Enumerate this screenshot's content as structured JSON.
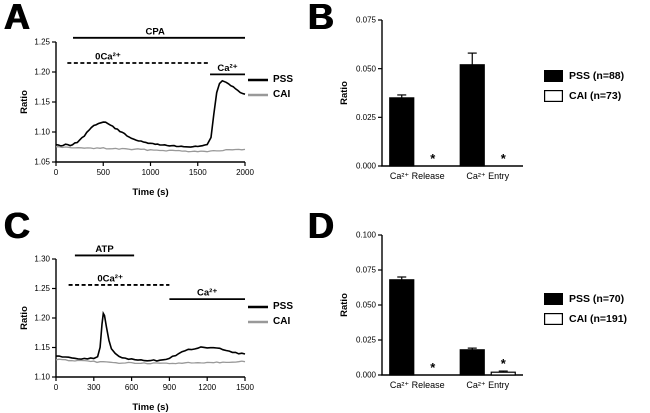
{
  "figure": {
    "background": "#ffffff",
    "trace_black": "#000000",
    "trace_gray": "#999999"
  },
  "panels": {
    "a": {
      "letter": "A",
      "legend": [
        {
          "label": "PSS",
          "color": "#000000"
        },
        {
          "label": "CAI",
          "color": "#999999"
        }
      ]
    },
    "b": {
      "letter": "B",
      "legend": [
        {
          "label": "PSS (n=88)",
          "fill": "#000000"
        },
        {
          "label": "CAI (n=73)",
          "fill": "#ffffff"
        }
      ]
    },
    "c": {
      "letter": "C",
      "legend": [
        {
          "label": "PSS",
          "color": "#000000"
        },
        {
          "label": "CAI",
          "color": "#999999"
        }
      ]
    },
    "d": {
      "letter": "D",
      "legend": [
        {
          "label": "PSS (n=70)",
          "fill": "#000000"
        },
        {
          "label": "CAI (n=191)",
          "fill": "#ffffff"
        }
      ]
    }
  },
  "chart_data": [
    {
      "id": "chart-a",
      "type": "line",
      "title": "",
      "xlabel": "Time (s)",
      "ylabel": "Ratio",
      "xlim": [
        0,
        2000
      ],
      "ylim": [
        1.05,
        1.25
      ],
      "xticks": [
        0,
        500,
        1000,
        1500,
        2000
      ],
      "yticks": [
        1.05,
        1.1,
        1.15,
        1.2,
        1.25
      ],
      "ytick_decimals": 2,
      "margins": {
        "l": 40,
        "r": 6,
        "t": 40,
        "b": 36
      },
      "annotations": [
        {
          "label": "CPA",
          "style": "solid",
          "x0": 180,
          "x1": 2000,
          "y": 1.257,
          "label_x": 1050
        },
        {
          "label": "0Ca²⁺",
          "style": "dashed",
          "x0": 120,
          "x1": 1620,
          "y": 1.215,
          "label_x": 550
        },
        {
          "label": "Ca²⁺",
          "style": "solid",
          "x0": 1630,
          "x1": 2000,
          "y": 1.196,
          "label_x": 1815
        }
      ],
      "series": [
        {
          "name": "PSS",
          "color": "#000000",
          "width": 1.6,
          "x": [
            0,
            50,
            100,
            150,
            200,
            250,
            300,
            350,
            400,
            450,
            500,
            550,
            600,
            650,
            700,
            750,
            800,
            850,
            900,
            950,
            1000,
            1050,
            1100,
            1150,
            1200,
            1250,
            1300,
            1350,
            1400,
            1450,
            1500,
            1550,
            1600,
            1640,
            1670,
            1700,
            1730,
            1760,
            1800,
            1850,
            1900,
            1950,
            2000
          ],
          "y": [
            1.079,
            1.077,
            1.08,
            1.078,
            1.081,
            1.086,
            1.094,
            1.103,
            1.11,
            1.115,
            1.117,
            1.114,
            1.109,
            1.104,
            1.099,
            1.094,
            1.09,
            1.087,
            1.084,
            1.082,
            1.081,
            1.08,
            1.079,
            1.078,
            1.077,
            1.077,
            1.076,
            1.076,
            1.075,
            1.075,
            1.076,
            1.077,
            1.079,
            1.09,
            1.13,
            1.165,
            1.18,
            1.186,
            1.183,
            1.178,
            1.172,
            1.166,
            1.163
          ]
        },
        {
          "name": "CAI",
          "color": "#999999",
          "width": 1.3,
          "x": [
            0,
            100,
            200,
            300,
            400,
            500,
            600,
            700,
            800,
            900,
            1000,
            1100,
            1200,
            1300,
            1400,
            1500,
            1600,
            1700,
            1800,
            1900,
            2000
          ],
          "y": [
            1.075,
            1.074,
            1.074,
            1.073,
            1.073,
            1.073,
            1.072,
            1.072,
            1.071,
            1.071,
            1.07,
            1.07,
            1.069,
            1.069,
            1.068,
            1.068,
            1.068,
            1.069,
            1.07,
            1.07,
            1.071
          ]
        }
      ]
    },
    {
      "id": "chart-b",
      "type": "bar",
      "title": "",
      "ylabel": "Ratio",
      "categories": [
        "Ca²⁺ Release",
        "Ca²⁺ Entry"
      ],
      "ylim": [
        0,
        0.075
      ],
      "yticks": [
        0,
        0.025,
        0.05,
        0.075
      ],
      "ytick_decimals": 3,
      "margins": {
        "l": 46,
        "r": 8,
        "t": 16,
        "b": 34
      },
      "series": [
        {
          "name": "PSS (n=88)",
          "fill": "#000000",
          "values": [
            0.035,
            0.052
          ],
          "errors": [
            0.0015,
            0.006
          ],
          "asterisk": [
            false,
            false
          ]
        },
        {
          "name": "CAI (n=73)",
          "fill": "#ffffff",
          "values": [
            0.0,
            0.0
          ],
          "errors": [
            0,
            0
          ],
          "asterisk": [
            true,
            true
          ]
        }
      ]
    },
    {
      "id": "chart-c",
      "type": "line",
      "title": "",
      "xlabel": "Time (s)",
      "ylabel": "Ratio",
      "xlim": [
        0,
        1500
      ],
      "ylim": [
        1.1,
        1.3
      ],
      "xticks": [
        0,
        300,
        600,
        900,
        1200,
        1500
      ],
      "yticks": [
        1.1,
        1.15,
        1.2,
        1.25,
        1.3
      ],
      "ytick_decimals": 2,
      "margins": {
        "l": 40,
        "r": 6,
        "t": 36,
        "b": 36
      },
      "annotations": [
        {
          "label": "ATP",
          "style": "solid",
          "x0": 150,
          "x1": 620,
          "y": 1.306,
          "label_x": 385
        },
        {
          "label": "0Ca²⁺",
          "style": "dashed",
          "x0": 100,
          "x1": 900,
          "y": 1.256,
          "label_x": 430
        },
        {
          "label": "Ca²⁺",
          "style": "solid",
          "x0": 900,
          "x1": 1500,
          "y": 1.232,
          "label_x": 1200
        }
      ],
      "series": [
        {
          "name": "PSS",
          "color": "#000000",
          "width": 1.6,
          "x": [
            0,
            50,
            100,
            150,
            200,
            250,
            300,
            330,
            350,
            365,
            375,
            385,
            400,
            420,
            440,
            470,
            500,
            550,
            600,
            650,
            700,
            750,
            800,
            850,
            900,
            950,
            1000,
            1050,
            1100,
            1150,
            1200,
            1250,
            1300,
            1350,
            1400,
            1450,
            1500
          ],
          "y": [
            1.136,
            1.134,
            1.133,
            1.132,
            1.131,
            1.131,
            1.132,
            1.134,
            1.15,
            1.19,
            1.207,
            1.205,
            1.185,
            1.162,
            1.148,
            1.14,
            1.135,
            1.132,
            1.13,
            1.129,
            1.128,
            1.128,
            1.128,
            1.129,
            1.132,
            1.137,
            1.142,
            1.146,
            1.148,
            1.15,
            1.15,
            1.149,
            1.148,
            1.145,
            1.142,
            1.14,
            1.139
          ]
        },
        {
          "name": "CAI",
          "color": "#999999",
          "width": 1.3,
          "x": [
            0,
            100,
            200,
            300,
            400,
            500,
            600,
            700,
            800,
            900,
            1000,
            1100,
            1200,
            1300,
            1400,
            1500
          ],
          "y": [
            1.13,
            1.128,
            1.127,
            1.126,
            1.125,
            1.124,
            1.124,
            1.123,
            1.123,
            1.123,
            1.124,
            1.124,
            1.125,
            1.125,
            1.126,
            1.126
          ]
        }
      ]
    },
    {
      "id": "chart-d",
      "type": "bar",
      "title": "",
      "ylabel": "Ratio",
      "categories": [
        "Ca²⁺ Release",
        "Ca²⁺ Entry"
      ],
      "ylim": [
        0,
        0.1
      ],
      "yticks": [
        0,
        0.025,
        0.05,
        0.075,
        0.1
      ],
      "ytick_decimals": 3,
      "margins": {
        "l": 46,
        "r": 8,
        "t": 16,
        "b": 34
      },
      "series": [
        {
          "name": "PSS (n=70)",
          "fill": "#000000",
          "values": [
            0.068,
            0.018
          ],
          "errors": [
            0.002,
            0.0012
          ],
          "asterisk": [
            false,
            false
          ]
        },
        {
          "name": "CAI (n=191)",
          "fill": "#ffffff",
          "values": [
            0.0,
            0.002
          ],
          "errors": [
            0,
            0.0008
          ],
          "asterisk": [
            true,
            true
          ]
        }
      ]
    }
  ]
}
